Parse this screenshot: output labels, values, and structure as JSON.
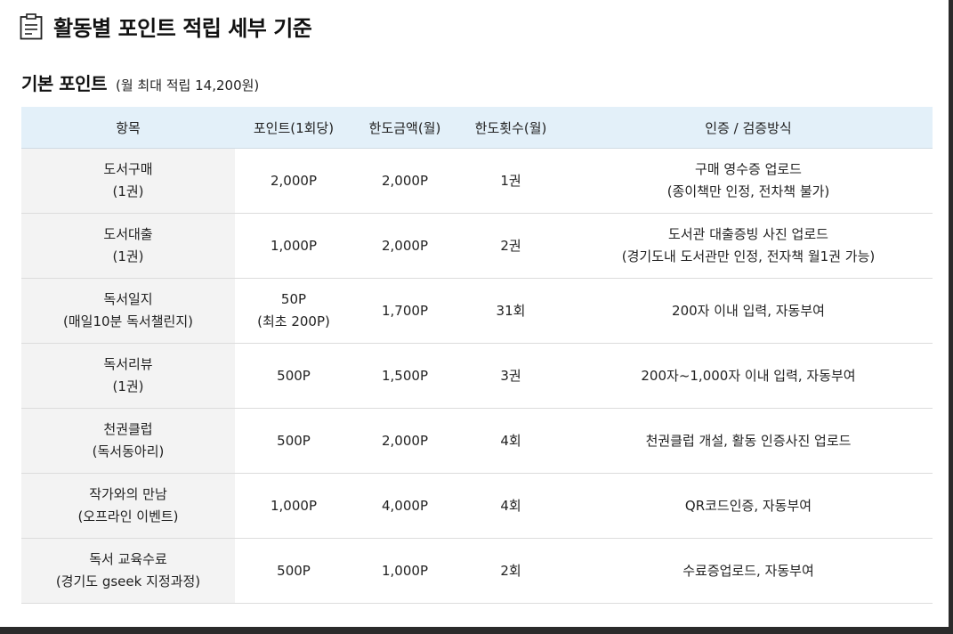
{
  "page": {
    "title": "활동별 포인트 적립 세부 기준",
    "icon": "clipboard-icon"
  },
  "section": {
    "title": "기본 포인트",
    "note": "(월 최대 적립 14,200원)"
  },
  "table": {
    "headers": [
      "항목",
      "포인트(1회당)",
      "한도금액(월)",
      "한도횟수(월)",
      "인증 / 검증방식"
    ],
    "rows": [
      {
        "item": [
          "도서구매",
          "(1권)"
        ],
        "points": [
          "2,000P"
        ],
        "limit_amount": "2,000P",
        "limit_count": "1권",
        "verification": [
          "구매 영수증 업로드",
          "(종이책만 인정, 전차책 불가)"
        ]
      },
      {
        "item": [
          "도서대출",
          "(1권)"
        ],
        "points": [
          "1,000P"
        ],
        "limit_amount": "2,000P",
        "limit_count": "2권",
        "verification": [
          "도서관 대출증빙 사진 업로드",
          "(경기도내 도서관만 인정, 전자책 월1권 가능)"
        ]
      },
      {
        "item": [
          "독서일지",
          "(매일10분 독서챌린지)"
        ],
        "points": [
          "50P",
          "(최초 200P)"
        ],
        "limit_amount": "1,700P",
        "limit_count": "31회",
        "verification": [
          "200자 이내 입력, 자동부여"
        ]
      },
      {
        "item": [
          "독서리뷰",
          "(1권)"
        ],
        "points": [
          "500P"
        ],
        "limit_amount": "1,500P",
        "limit_count": "3권",
        "verification": [
          "200자~1,000자 이내 입력, 자동부여"
        ]
      },
      {
        "item": [
          "천권클럽",
          "(독서동아리)"
        ],
        "points": [
          "500P"
        ],
        "limit_amount": "2,000P",
        "limit_count": "4회",
        "verification": [
          "천권클럽 개설, 활동 인증사진 업로드"
        ]
      },
      {
        "item": [
          "작가와의 만남",
          "(오프라인 이벤트)"
        ],
        "points": [
          "1,000P"
        ],
        "limit_amount": "4,000P",
        "limit_count": "4회",
        "verification": [
          "QR코드인증, 자동부여"
        ]
      },
      {
        "item": [
          "독서 교육수료",
          "(경기도 gseek 지정과정)"
        ],
        "points": [
          "500P"
        ],
        "limit_amount": "1,000P",
        "limit_count": "2회",
        "verification": [
          "수료증업로드, 자동부여"
        ]
      }
    ]
  }
}
